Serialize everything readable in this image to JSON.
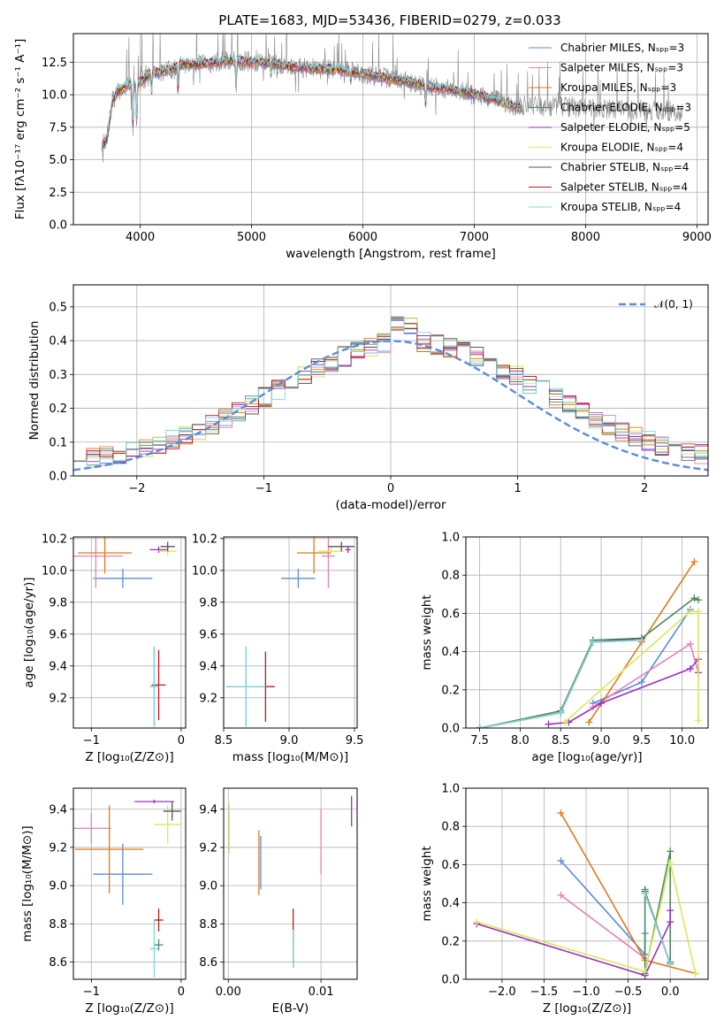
{
  "figure_title": "PLATE=1683, MJD=53436, FIBERID=0279, z=0.033",
  "colors": {
    "chabrier_miles": "#5b8bd9",
    "salpeter_miles": "#e880b8",
    "kroupa_miles": "#e07a1f",
    "chabrier_elodie": "#4a8a5a",
    "salpeter_elodie": "#9b30c0",
    "kroupa_elodie": "#d8e85a",
    "chabrier_stelib": "#555555",
    "salpeter_stelib": "#c01818",
    "kroupa_stelib": "#7ed8df",
    "data": "#888888",
    "gauss": "#5b8bd9"
  },
  "chart_data": [
    {
      "id": "spectrum",
      "type": "line",
      "xlabel": "wavelength [Angstrom, rest frame]",
      "ylabel": "Flux [fλ10⁻¹⁷ erg cm⁻² s⁻¹ A⁻¹]",
      "xlim": [
        3400,
        9100
      ],
      "ylim": [
        0,
        14.7
      ],
      "xticks": [
        "4000",
        "5000",
        "6000",
        "7000",
        "8000",
        "9000"
      ],
      "yticks": [
        "0.0",
        "2.5",
        "5.0",
        "7.5",
        "10.0",
        "12.5"
      ],
      "legend_position": "top-right",
      "legend": [
        "Chabrier MILES, N_SSP=3",
        "Salpeter MILES, N_SSP=3",
        "Kroupa MILES, N_SSP=3",
        "Chabrier ELODIE, N_SSP=3",
        "Salpeter ELODIE, N_SSP=5",
        "Kroupa ELODIE, N_SSP=4",
        "Chabrier STELIB, N_SSP=4",
        "Salpeter STELIB, N_SSP=4",
        "Kroupa STELIB, N_SSP=4"
      ],
      "legend_display": [
        "Chabrier MILES, Nₛₚₚ=3",
        "Salpeter MILES, Nₛₚₚ=3",
        "Kroupa MILES, Nₛₚₚ=3",
        "Chabrier ELODIE, Nₛₚₚ=3",
        "Salpeter ELODIE, Nₛₚₚ=5",
        "Kroupa ELODIE, Nₛₚₚ=4",
        "Chabrier STELIB, Nₛₚₚ=4",
        "Salpeter STELIB, Nₛₚₚ=4",
        "Kroupa STELIB, Nₛₚₚ=4"
      ],
      "model_continuum": {
        "x": [
          3650,
          3700,
          3750,
          3800,
          3850,
          3900,
          3950,
          4000,
          4100,
          4200,
          4300,
          4400,
          4500,
          4600,
          4700,
          4800,
          4900,
          5000,
          5200,
          5400,
          5600,
          5800,
          6000,
          6200,
          6400,
          6600,
          6800,
          7000,
          7200,
          7400
        ],
        "y": [
          6.0,
          6.5,
          9.5,
          10.2,
          10.5,
          10.8,
          10.7,
          11.0,
          11.6,
          11.8,
          12.0,
          12.4,
          12.3,
          12.4,
          12.5,
          12.6,
          12.6,
          12.5,
          12.4,
          12.1,
          12.0,
          11.9,
          11.6,
          11.3,
          11.0,
          10.6,
          10.4,
          10.0,
          9.6,
          9.0
        ]
      }
    },
    {
      "id": "residuals",
      "type": "line",
      "xlabel": "(data-model)/error",
      "ylabel": "Normed distribution",
      "xlim": [
        -2.5,
        2.5
      ],
      "ylim": [
        0,
        0.565
      ],
      "xticks": [
        "−2",
        "−1",
        "0",
        "1",
        "2"
      ],
      "yticks": [
        "0.0",
        "0.1",
        "0.2",
        "0.3",
        "0.4",
        "0.5"
      ],
      "gaussian_label": "𝒩(0, 1)",
      "legend_position": "top-right",
      "hist_x_range": [
        -2.5,
        2.5
      ],
      "hist_bins": 48
    },
    {
      "id": "age_vs_Z",
      "type": "scatter",
      "xlabel": "Z [log₁₀(Z/Z⊙)]",
      "ylabel": "age  [log₁₀(age/yr)]",
      "xlim": [
        -1.2,
        0.05
      ],
      "ylim": [
        9.01,
        10.21
      ],
      "xticks": [
        "−1",
        "0"
      ],
      "yticks": [
        "9.2",
        "9.4",
        "9.6",
        "9.8",
        "10.0",
        "10.2"
      ],
      "points": [
        {
          "model": "chabrier_miles",
          "x": -0.65,
          "xerr": 0.33,
          "y": 9.95,
          "yerr": 0.06
        },
        {
          "model": "salpeter_miles",
          "x": -0.95,
          "xerr": 0.3,
          "y": 10.09,
          "yerr": 0.2
        },
        {
          "model": "kroupa_miles",
          "x": -0.85,
          "xerr": 0.3,
          "y": 10.11,
          "yerr": 0.13
        },
        {
          "model": "chabrier_elodie",
          "x": -0.3,
          "xerr": 0.05,
          "y": 9.27,
          "yerr": 0.25
        },
        {
          "model": "salpeter_elodie",
          "x": -0.25,
          "xerr": 0.1,
          "y": 10.13,
          "yerr": 0.02
        },
        {
          "model": "kroupa_elodie",
          "x": -0.15,
          "xerr": 0.1,
          "y": 10.12,
          "yerr": 0.03
        },
        {
          "model": "chabrier_stelib",
          "x": -0.15,
          "xerr": 0.08,
          "y": 10.15,
          "yerr": 0.03
        },
        {
          "model": "salpeter_stelib",
          "x": -0.25,
          "xerr": 0.08,
          "y": 9.28,
          "yerr": 0.22
        },
        {
          "model": "kroupa_stelib",
          "x": -0.3,
          "xerr": 0.05,
          "y": 9.27,
          "yerr": 0.25
        }
      ]
    },
    {
      "id": "age_vs_mass",
      "type": "scatter",
      "xlabel": "mass [log₁₀(M/M⊙)]",
      "ylabel": "",
      "xlim": [
        8.5,
        9.52
      ],
      "ylim": [
        9.01,
        10.21
      ],
      "xticks": [
        "8.5",
        "9.0",
        "9.5"
      ],
      "yticks": [
        "9.2",
        "9.4",
        "9.6",
        "9.8",
        "10.0",
        "10.2"
      ],
      "points": [
        {
          "model": "chabrier_miles",
          "x": 9.07,
          "xerr": 0.13,
          "y": 9.95,
          "yerr": 0.06
        },
        {
          "model": "salpeter_miles",
          "x": 9.3,
          "xerr": 0.05,
          "y": 10.09,
          "yerr": 0.2
        },
        {
          "model": "kroupa_miles",
          "x": 9.19,
          "xerr": 0.13,
          "y": 10.11,
          "yerr": 0.13
        },
        {
          "model": "chabrier_elodie",
          "x": 8.67,
          "xerr": 0.15,
          "y": 9.27,
          "yerr": 0.25
        },
        {
          "model": "salpeter_elodie",
          "x": 9.45,
          "xerr": 0.02,
          "y": 10.13,
          "yerr": 0.02
        },
        {
          "model": "kroupa_elodie",
          "x": 9.32,
          "xerr": 0.1,
          "y": 10.12,
          "yerr": 0.03
        },
        {
          "model": "chabrier_stelib",
          "x": 9.4,
          "xerr": 0.1,
          "y": 10.15,
          "yerr": 0.03
        },
        {
          "model": "salpeter_stelib",
          "x": 8.82,
          "xerr": 0.07,
          "y": 9.27,
          "yerr": 0.22
        },
        {
          "model": "kroupa_stelib",
          "x": 8.67,
          "xerr": 0.15,
          "y": 9.27,
          "yerr": 0.25
        }
      ]
    },
    {
      "id": "weight_vs_age",
      "type": "line",
      "xlabel": "age  [log₁₀(age/yr)]",
      "ylabel": "mass weight",
      "xlim": [
        7.33,
        10.32
      ],
      "ylim": [
        0,
        1.0
      ],
      "xticks": [
        "7.5",
        "8.0",
        "8.5",
        "9.0",
        "9.5",
        "10.0"
      ],
      "yticks": [
        "0.0",
        "0.2",
        "0.4",
        "0.6",
        "0.8",
        "1.0"
      ],
      "series": [
        {
          "model": "chabrier_miles",
          "x": [
            8.9,
            9.5,
            10.1
          ],
          "y": [
            0.13,
            0.24,
            0.62
          ]
        },
        {
          "model": "salpeter_miles",
          "x": [
            8.9,
            10.1,
            10.2
          ],
          "y": [
            0.11,
            0.44,
            0.29
          ]
        },
        {
          "model": "kroupa_miles",
          "x": [
            8.85,
            9.5,
            10.15
          ],
          "y": [
            0.03,
            0.45,
            0.87
          ]
        },
        {
          "model": "chabrier_elodie",
          "x": [
            7.5,
            8.5,
            8.9,
            9.5,
            10.15,
            10.2
          ],
          "y": [
            0.0,
            0.09,
            0.46,
            0.47,
            0.68,
            0.67
          ]
        },
        {
          "model": "salpeter_elodie",
          "x": [
            8.35,
            8.6,
            9.0,
            10.1,
            10.2,
            10.2
          ],
          "y": [
            0.02,
            0.03,
            0.13,
            0.31,
            0.36,
            0.29
          ]
        },
        {
          "model": "kroupa_elodie",
          "x": [
            8.55,
            9.0,
            10.1,
            10.2,
            10.2
          ],
          "y": [
            0.03,
            0.2,
            0.61,
            0.61,
            0.04
          ]
        },
        {
          "model": "chabrier_stelib",
          "x": [
            7.5,
            8.5,
            8.9,
            9.5
          ],
          "y": [
            0.0,
            0.08,
            0.45,
            0.47
          ]
        },
        {
          "model": "salpeter_stelib",
          "x": [
            7.5,
            8.5,
            8.9,
            9.5
          ],
          "y": [
            0.0,
            0.08,
            0.45,
            0.46
          ]
        },
        {
          "model": "kroupa_stelib",
          "x": [
            7.5,
            8.5,
            8.9,
            9.5
          ],
          "y": [
            0.0,
            0.08,
            0.45,
            0.46
          ]
        }
      ]
    },
    {
      "id": "mass_vs_Z",
      "type": "scatter",
      "xlabel": "Z [log₁₀(Z/Z⊙)]",
      "ylabel": "mass [log₁₀(M/M⊙)]",
      "xlim": [
        -1.2,
        0.05
      ],
      "ylim": [
        8.51,
        9.51
      ],
      "xticks": [
        "−1",
        "0"
      ],
      "yticks": [
        "8.6",
        "8.8",
        "9.0",
        "9.2",
        "9.4"
      ],
      "points": [
        {
          "model": "chabrier_miles",
          "x": -0.65,
          "xerr": 0.33,
          "y": 9.06,
          "yerr": 0.16
        },
        {
          "model": "salpeter_miles",
          "x": -1.0,
          "xerr": 0.22,
          "y": 9.3,
          "yerr": 0.08
        },
        {
          "model": "kroupa_miles",
          "x": -0.8,
          "xerr": 0.38,
          "y": 9.19,
          "yerr": 0.23
        },
        {
          "model": "chabrier_elodie",
          "x": -0.25,
          "xerr": 0.05,
          "y": 8.69,
          "yerr": 0.03
        },
        {
          "model": "salpeter_elodie",
          "x": -0.3,
          "xerr": 0.22,
          "y": 9.44,
          "yerr": 0.01
        },
        {
          "model": "kroupa_elodie",
          "x": -0.15,
          "xerr": 0.15,
          "y": 9.32,
          "yerr": 0.1
        },
        {
          "model": "chabrier_stelib",
          "x": -0.1,
          "xerr": 0.1,
          "y": 9.39,
          "yerr": 0.05
        },
        {
          "model": "salpeter_stelib",
          "x": -0.25,
          "xerr": 0.05,
          "y": 8.82,
          "yerr": 0.06
        },
        {
          "model": "kroupa_stelib",
          "x": -0.3,
          "xerr": 0.05,
          "y": 8.67,
          "yerr": 0.15
        }
      ]
    },
    {
      "id": "mass_vs_ebv",
      "type": "scatter",
      "xlabel": "E(B-V)",
      "ylabel": "",
      "xlim": [
        -0.0005,
        0.0139
      ],
      "ylim": [
        8.51,
        9.51
      ],
      "xticks": [
        "0.00",
        "0.01"
      ],
      "yticks": [
        "8.6",
        "8.8",
        "9.0",
        "9.2",
        "9.4"
      ],
      "points": [
        {
          "model": "chabrier_miles",
          "x": 0.0035,
          "xerr": 0.0,
          "y": 9.12,
          "yerr": 0.14
        },
        {
          "model": "salpeter_miles",
          "x": 0.01,
          "xerr": 0.0,
          "y": 9.23,
          "yerr": 0.17
        },
        {
          "model": "kroupa_miles",
          "x": 0.0033,
          "xerr": 0.0,
          "y": 9.12,
          "yerr": 0.17
        },
        {
          "model": "chabrier_elodie",
          "x": 0.007,
          "xerr": 0.0,
          "y": 8.67,
          "yerr": 0.1
        },
        {
          "model": "salpeter_elodie",
          "x": 0.0133,
          "xerr": 0.0,
          "y": 9.39,
          "yerr": 0.08
        },
        {
          "model": "kroupa_elodie",
          "x": 0.0001,
          "xerr": 0.0,
          "y": 9.3,
          "yerr": 0.13
        },
        {
          "model": "chabrier_stelib",
          "x": 0.007,
          "xerr": 0.0,
          "y": 8.67,
          "yerr": 0.1
        },
        {
          "model": "salpeter_stelib",
          "x": 0.007,
          "xerr": 0.0,
          "y": 8.8,
          "yerr": 0.08
        },
        {
          "model": "kroupa_stelib",
          "x": 0.007,
          "xerr": 0.0,
          "y": 8.67,
          "yerr": 0.1
        }
      ]
    },
    {
      "id": "weight_vs_Z",
      "type": "line",
      "xlabel": "Z [log₁₀(Z/Z⊙)]",
      "ylabel": "mass weight",
      "xlim": [
        -2.43,
        0.45
      ],
      "ylim": [
        0,
        1.0
      ],
      "xticks": [
        "−2.0",
        "−1.5",
        "−1.0",
        "−0.5",
        "0.0"
      ],
      "yticks": [
        "0.0",
        "0.2",
        "0.4",
        "0.6",
        "0.8",
        "1.0"
      ],
      "series": [
        {
          "model": "chabrier_miles",
          "x": [
            -1.3,
            -0.3,
            -0.3
          ],
          "y": [
            0.62,
            0.13,
            0.24
          ]
        },
        {
          "model": "salpeter_miles",
          "x": [
            -1.3,
            -0.3,
            -0.3
          ],
          "y": [
            0.44,
            0.11,
            0.11
          ]
        },
        {
          "model": "kroupa_miles",
          "x": [
            -1.3,
            -0.3,
            0.3
          ],
          "y": [
            0.87,
            0.1,
            0.03
          ]
        },
        {
          "model": "chabrier_elodie",
          "x": [
            -0.3,
            -0.3,
            0.0,
            0.0
          ],
          "y": [
            0.47,
            0.03,
            0.67,
            0.09
          ]
        },
        {
          "model": "salpeter_elodie",
          "x": [
            -2.3,
            -0.3,
            0.0,
            0.0
          ],
          "y": [
            0.29,
            0.02,
            0.3,
            0.36
          ]
        },
        {
          "model": "kroupa_elodie",
          "x": [
            -2.3,
            -0.3,
            0.0,
            0.3
          ],
          "y": [
            0.3,
            0.04,
            0.61,
            0.03
          ]
        },
        {
          "model": "chabrier_stelib",
          "x": [
            -0.3,
            0.0
          ],
          "y": [
            0.46,
            0.08
          ]
        },
        {
          "model": "salpeter_stelib",
          "x": [
            -0.3,
            0.0
          ],
          "y": [
            0.45,
            0.08
          ]
        },
        {
          "model": "kroupa_stelib",
          "x": [
            -0.3,
            0.0
          ],
          "y": [
            0.45,
            0.08
          ]
        }
      ]
    }
  ]
}
